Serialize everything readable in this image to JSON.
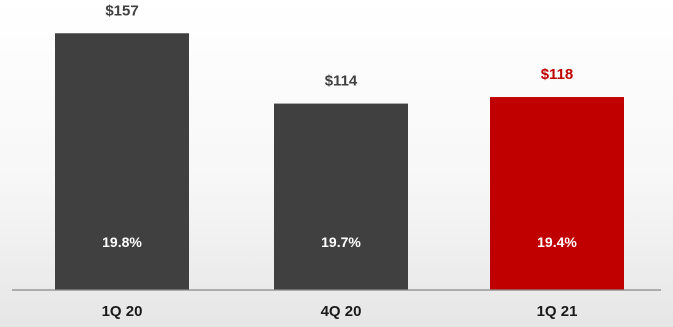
{
  "chart_data": {
    "type": "bar",
    "categories": [
      "1Q 20",
      "4Q 20",
      "1Q 21"
    ],
    "values": [
      157,
      114,
      118
    ],
    "value_labels": [
      "$157",
      "$114",
      "$118"
    ],
    "inner_labels": [
      "19.8%",
      "19.7%",
      "19.4%"
    ],
    "title": "",
    "xlabel": "",
    "ylabel": "",
    "ylim": [
      0,
      170
    ],
    "grid": false,
    "legend": "none",
    "colors": {
      "default_bar": "#404040",
      "highlight_bar": "#c00000",
      "default_label": "#404040",
      "highlight_label": "#c00000",
      "axis": "#888888"
    },
    "highlight_index": 2
  }
}
